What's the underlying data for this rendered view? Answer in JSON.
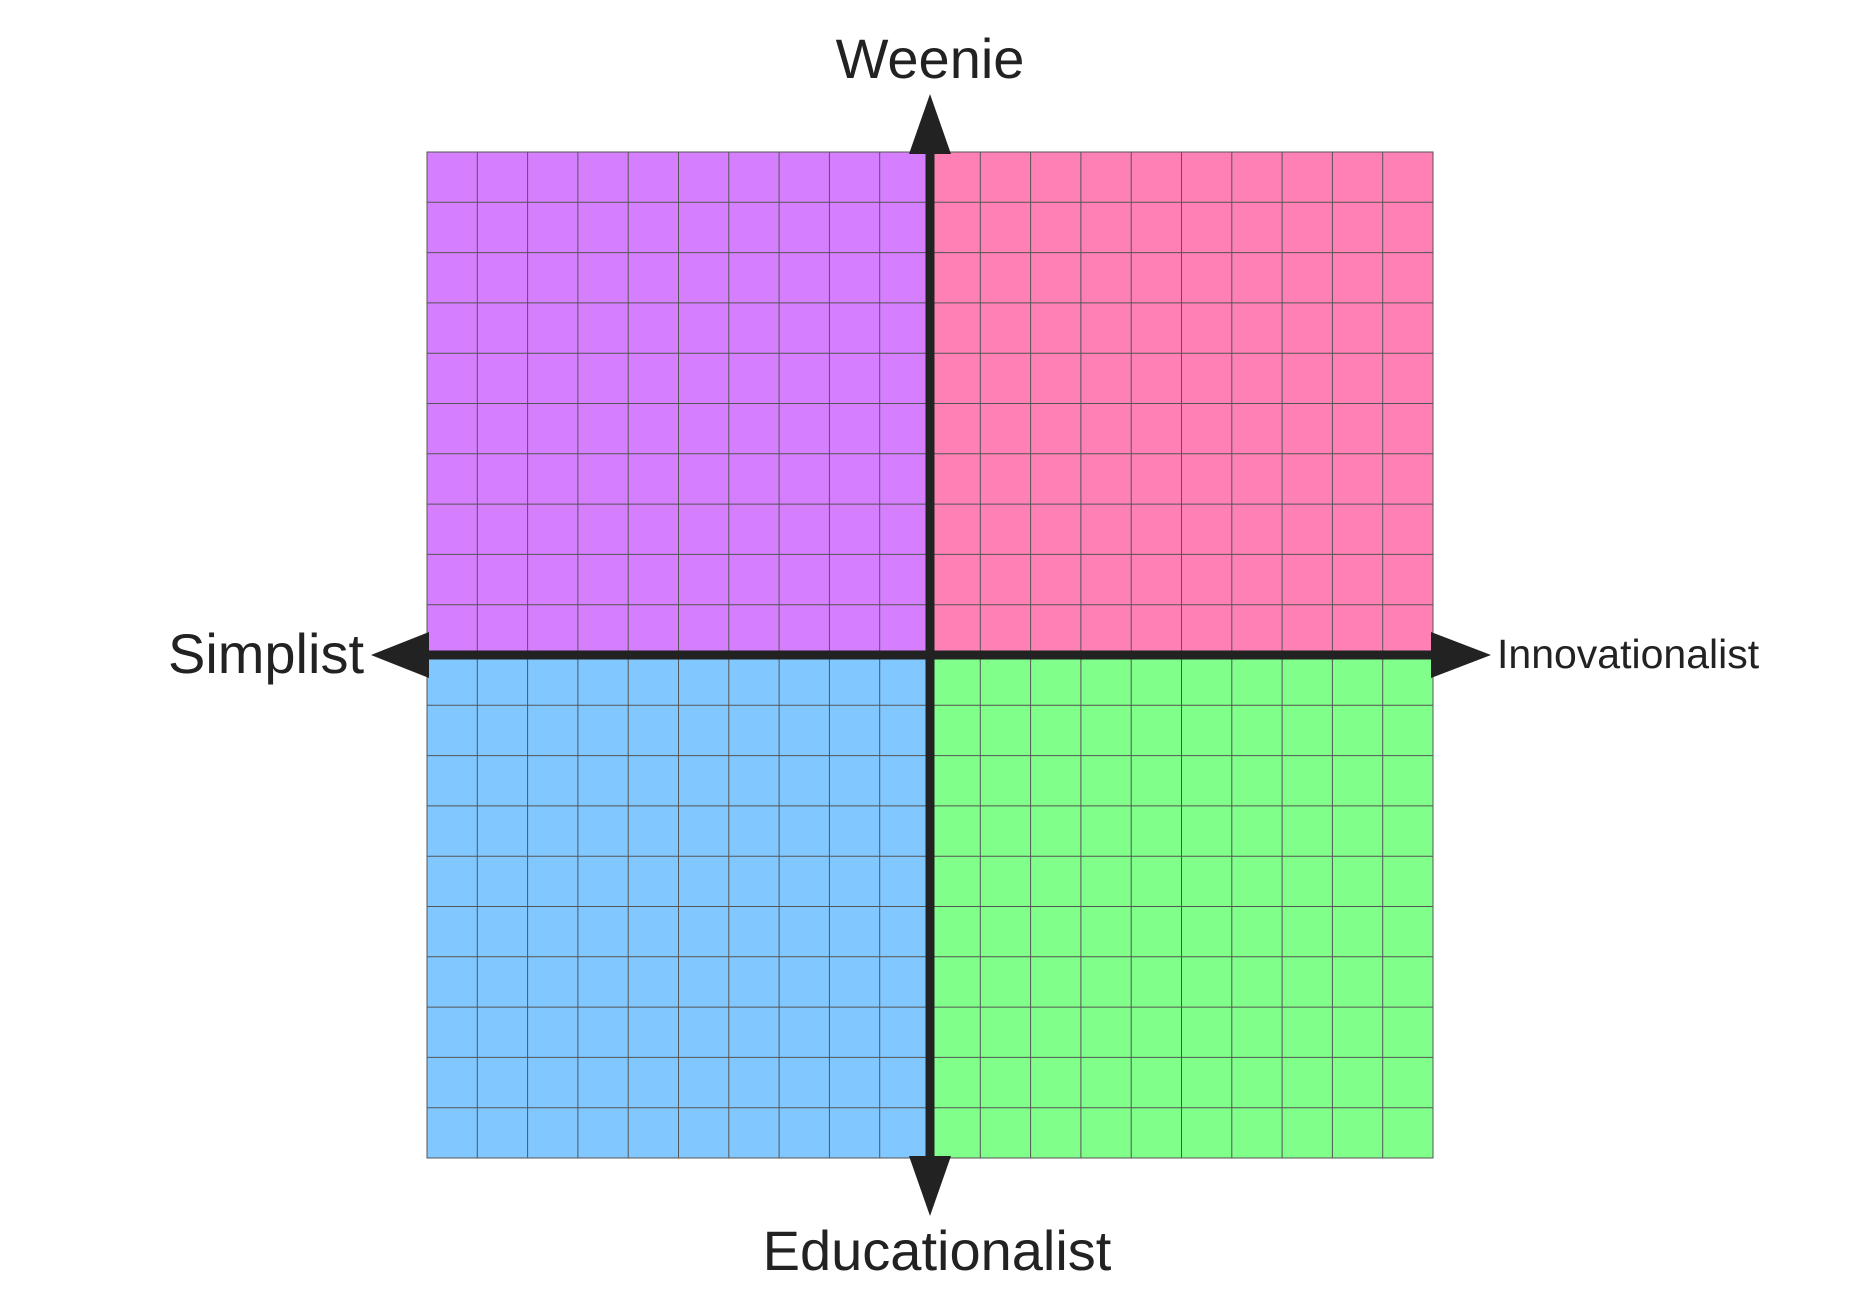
{
  "axis_labels": {
    "top": "Weenie",
    "bottom": "Educationalist",
    "left": "Simplist",
    "right": "Innovationalist"
  },
  "grid": {
    "columns": 20,
    "rows": 20
  },
  "quadrants": {
    "top_left_color": "#d57fff",
    "top_right_color": "#ff80b4",
    "bottom_left_color": "#80c8ff",
    "bottom_right_color": "#80ff8a"
  },
  "colors": {
    "axis": "#222222",
    "gridline": "#555555"
  }
}
